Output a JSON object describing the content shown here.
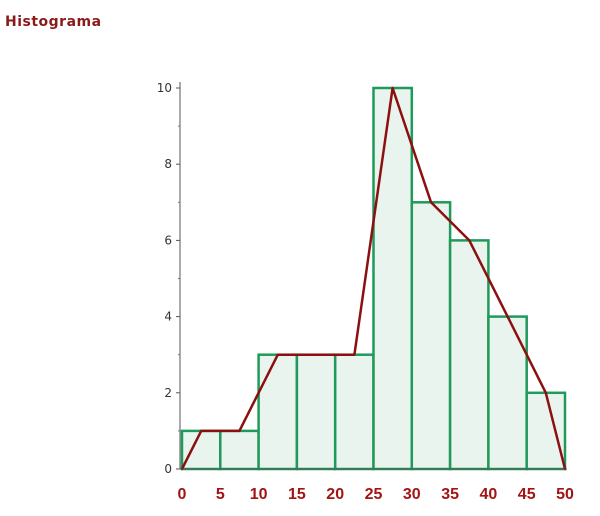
{
  "title": "Histograma",
  "chart_data": {
    "type": "bar",
    "title": "Histograma",
    "bin_edges": [
      0,
      5,
      10,
      15,
      20,
      25,
      30,
      35,
      40,
      45,
      50
    ],
    "values": [
      1,
      1,
      3,
      3,
      3,
      10,
      7,
      6,
      4,
      2
    ],
    "frequency_polygon": {
      "x": [
        0,
        2.5,
        7.5,
        12.5,
        17.5,
        22.5,
        27.5,
        32.5,
        37.5,
        42.5,
        47.5,
        50
      ],
      "y": [
        0,
        1,
        1,
        3,
        3,
        3,
        10,
        7,
        6,
        4,
        2,
        0
      ]
    },
    "xticks": [
      "0",
      "5",
      "10",
      "15",
      "20",
      "25",
      "30",
      "35",
      "40",
      "45",
      "50"
    ],
    "yticks": [
      "0",
      "2",
      "4",
      "6",
      "8",
      "10"
    ],
    "xlim": [
      0,
      50
    ],
    "ylim": [
      0,
      10
    ],
    "grid": false,
    "xlabel": "",
    "ylabel": "",
    "colors": {
      "bar_fill": "#eaf4ee",
      "bar_stroke": "#1f9a5a",
      "polygon": "#8b1010",
      "title": "#8b1a1a",
      "x_tick_label": "#a01515"
    }
  }
}
